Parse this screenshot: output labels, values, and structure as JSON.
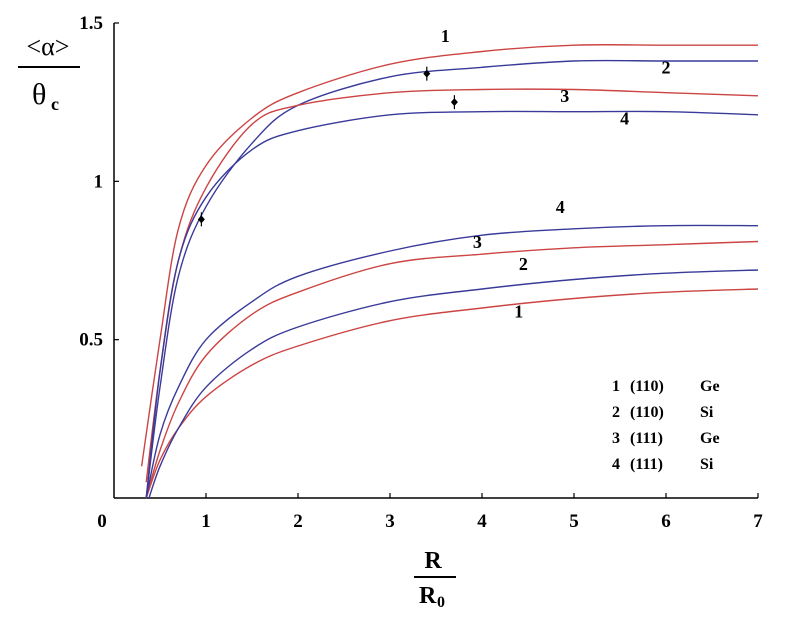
{
  "chart_data": {
    "type": "line",
    "ylabel": {
      "top": "<α>",
      "bottom_main": "θ",
      "bottom_sub": "c"
    },
    "xlabel": {
      "top": "R",
      "bottom_main": "R",
      "bottom_sub": "0"
    },
    "xlim": [
      0,
      7
    ],
    "ylim": [
      0,
      1.5
    ],
    "x_ticks": [
      "0",
      "1",
      "2",
      "3",
      "4",
      "5",
      "6",
      "7"
    ],
    "y_ticks": [
      {
        "value": 1.5,
        "label": "1.5"
      },
      {
        "value": 1.0,
        "label": "1"
      },
      {
        "value": 0.5,
        "label": "0.5"
      }
    ],
    "grid": false,
    "legend_position": "bottom-right",
    "legend": [
      {
        "num": "1",
        "plane": "(110)",
        "element": "Ge"
      },
      {
        "num": "2",
        "plane": "(110)",
        "element": "Si"
      },
      {
        "num": "3",
        "plane": "(111)",
        "element": "Ge"
      },
      {
        "num": "4",
        "plane": "(111)",
        "element": "Si"
      }
    ],
    "colors": {
      "ge": "#cc4444",
      "si": "#3a3a9a"
    },
    "series": [
      {
        "label": "1",
        "group": "upper",
        "color": "#cc4444",
        "points": [
          [
            0.3,
            0.1
          ],
          [
            0.5,
            0.5
          ],
          [
            0.7,
            0.85
          ],
          [
            1.0,
            1.05
          ],
          [
            1.5,
            1.2
          ],
          [
            2.0,
            1.28
          ],
          [
            3.0,
            1.37
          ],
          [
            4.0,
            1.41
          ],
          [
            5.0,
            1.43
          ],
          [
            6.0,
            1.43
          ],
          [
            7.0,
            1.43
          ]
        ]
      },
      {
        "label": "2",
        "group": "upper",
        "color": "#3a3a9a",
        "points": [
          [
            0.35,
            0.0
          ],
          [
            0.5,
            0.35
          ],
          [
            0.7,
            0.7
          ],
          [
            1.0,
            0.92
          ],
          [
            1.5,
            1.12
          ],
          [
            2.0,
            1.24
          ],
          [
            3.0,
            1.33
          ],
          [
            4.0,
            1.36
          ],
          [
            5.0,
            1.38
          ],
          [
            6.0,
            1.38
          ],
          [
            7.0,
            1.38
          ]
        ]
      },
      {
        "label": "3",
        "group": "upper",
        "color": "#cc4444",
        "points": [
          [
            0.35,
            0.05
          ],
          [
            0.5,
            0.4
          ],
          [
            0.7,
            0.75
          ],
          [
            1.0,
            0.98
          ],
          [
            1.5,
            1.18
          ],
          [
            2.0,
            1.24
          ],
          [
            3.0,
            1.28
          ],
          [
            4.0,
            1.29
          ],
          [
            5.0,
            1.29
          ],
          [
            6.0,
            1.28
          ],
          [
            7.0,
            1.27
          ]
        ]
      },
      {
        "label": "4",
        "group": "upper",
        "color": "#3a3a9a",
        "points": [
          [
            0.35,
            0.0
          ],
          [
            0.5,
            0.4
          ],
          [
            0.7,
            0.75
          ],
          [
            1.0,
            0.95
          ],
          [
            1.5,
            1.1
          ],
          [
            2.0,
            1.16
          ],
          [
            3.0,
            1.21
          ],
          [
            4.0,
            1.22
          ],
          [
            5.0,
            1.22
          ],
          [
            6.0,
            1.22
          ],
          [
            7.0,
            1.21
          ]
        ]
      },
      {
        "label": "1",
        "group": "lower",
        "color": "#cc4444",
        "points": [
          [
            0.35,
            0.0
          ],
          [
            0.5,
            0.12
          ],
          [
            0.7,
            0.22
          ],
          [
            1.0,
            0.32
          ],
          [
            1.5,
            0.42
          ],
          [
            2.0,
            0.48
          ],
          [
            3.0,
            0.56
          ],
          [
            4.0,
            0.6
          ],
          [
            5.0,
            0.63
          ],
          [
            6.0,
            0.65
          ],
          [
            7.0,
            0.66
          ]
        ]
      },
      {
        "label": "2",
        "group": "lower",
        "color": "#3a3a9a",
        "points": [
          [
            0.38,
            0.0
          ],
          [
            0.5,
            0.1
          ],
          [
            0.7,
            0.22
          ],
          [
            1.0,
            0.35
          ],
          [
            1.5,
            0.47
          ],
          [
            2.0,
            0.54
          ],
          [
            3.0,
            0.62
          ],
          [
            4.0,
            0.66
          ],
          [
            5.0,
            0.69
          ],
          [
            6.0,
            0.71
          ],
          [
            7.0,
            0.72
          ]
        ]
      },
      {
        "label": "3",
        "group": "lower",
        "color": "#cc4444",
        "points": [
          [
            0.35,
            0.0
          ],
          [
            0.5,
            0.15
          ],
          [
            0.7,
            0.3
          ],
          [
            1.0,
            0.45
          ],
          [
            1.5,
            0.58
          ],
          [
            2.0,
            0.65
          ],
          [
            3.0,
            0.74
          ],
          [
            4.0,
            0.77
          ],
          [
            5.0,
            0.79
          ],
          [
            6.0,
            0.8
          ],
          [
            7.0,
            0.81
          ]
        ]
      },
      {
        "label": "4",
        "group": "lower",
        "color": "#3a3a9a",
        "points": [
          [
            0.35,
            0.0
          ],
          [
            0.5,
            0.2
          ],
          [
            0.7,
            0.35
          ],
          [
            1.0,
            0.5
          ],
          [
            1.5,
            0.62
          ],
          [
            2.0,
            0.7
          ],
          [
            3.0,
            0.78
          ],
          [
            4.0,
            0.83
          ],
          [
            5.0,
            0.85
          ],
          [
            6.0,
            0.86
          ],
          [
            7.0,
            0.86
          ]
        ]
      }
    ],
    "curve_labels": [
      {
        "text": "1",
        "x": 3.6,
        "y": 1.44
      },
      {
        "text": "2",
        "x": 6.0,
        "y": 1.34
      },
      {
        "text": "3",
        "x": 4.9,
        "y": 1.25
      },
      {
        "text": "4",
        "x": 5.55,
        "y": 1.18
      },
      {
        "text": "4",
        "x": 4.85,
        "y": 0.9
      },
      {
        "text": "3",
        "x": 3.95,
        "y": 0.79
      },
      {
        "text": "2",
        "x": 4.45,
        "y": 0.72
      },
      {
        "text": "1",
        "x": 4.4,
        "y": 0.57
      }
    ],
    "markers": [
      {
        "x": 0.95,
        "y": 0.88
      },
      {
        "x": 3.4,
        "y": 1.34
      },
      {
        "x": 3.7,
        "y": 1.25
      }
    ]
  }
}
